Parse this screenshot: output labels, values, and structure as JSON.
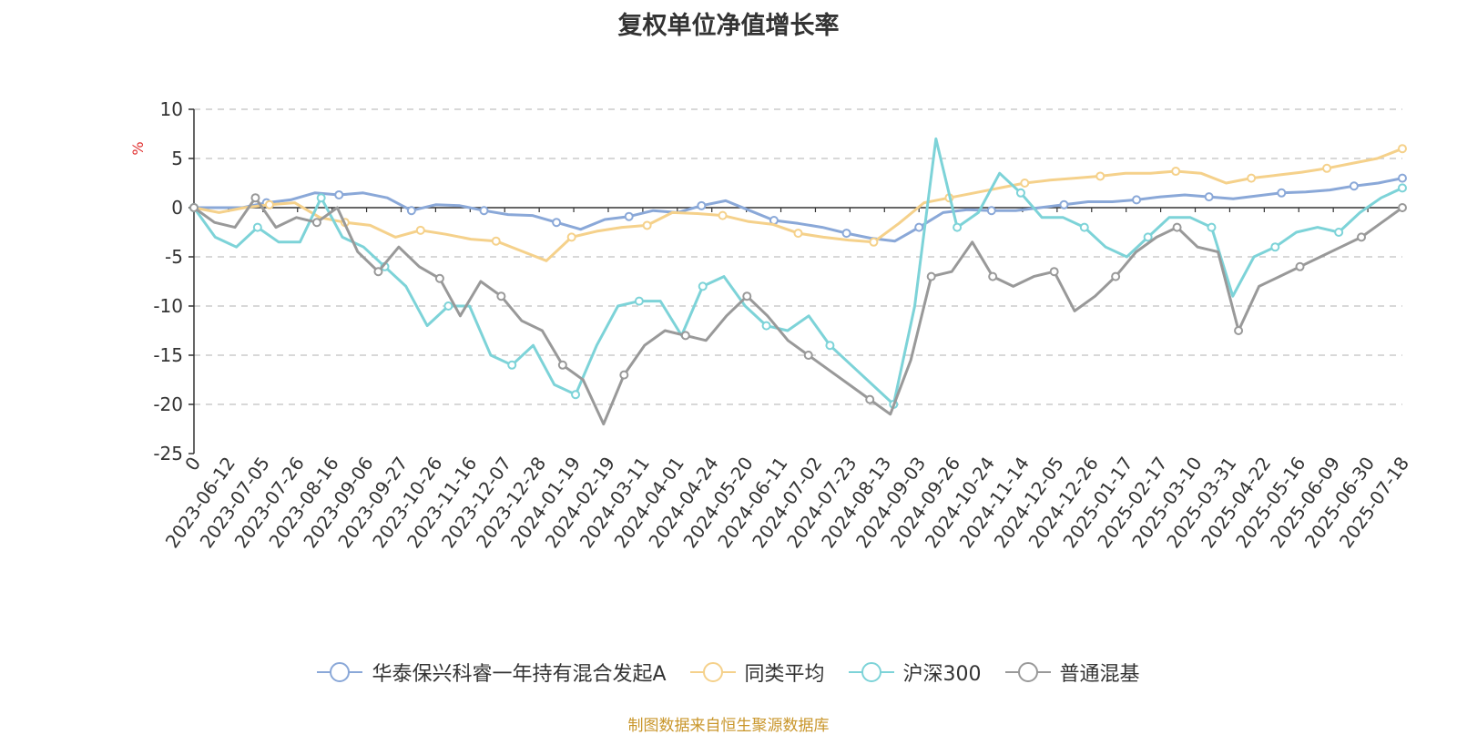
{
  "chart_data": {
    "type": "line",
    "title": "复权单位净值增长率",
    "ylabel": "%",
    "ylim": [
      -25,
      10
    ],
    "yticks": [
      10,
      5,
      0,
      -5,
      -10,
      -15,
      -20,
      -25
    ],
    "grid": true,
    "legend_position": "bottom",
    "x_tick_labels": [
      "0",
      "2023-06-12",
      "2023-07-05",
      "2023-07-26",
      "2023-08-16",
      "2023-09-06",
      "2023-09-27",
      "2023-10-26",
      "2023-11-16",
      "2023-12-07",
      "2023-12-28",
      "2024-01-19",
      "2024-02-19",
      "2024-03-11",
      "2024-04-01",
      "2024-04-24",
      "2024-05-20",
      "2024-06-11",
      "2024-07-02",
      "2024-07-23",
      "2024-08-13",
      "2024-09-03",
      "2024-09-26",
      "2024-10-24",
      "2024-11-14",
      "2024-12-05",
      "2024-12-26",
      "2025-01-17",
      "2025-02-17",
      "2025-03-10",
      "2025-03-31",
      "2025-04-22",
      "2025-05-16",
      "2025-06-09",
      "2025-06-30",
      "2025-07-18"
    ],
    "series": [
      {
        "name": "华泰保兴科睿一年持有混合发起A",
        "color": "#8aa8d8",
        "values": [
          0,
          0,
          0,
          0.5,
          0.8,
          1.5,
          1.3,
          1.5,
          1,
          -0.3,
          0.3,
          0.2,
          -0.3,
          -0.7,
          -0.8,
          -1.5,
          -2.2,
          -1.2,
          -0.9,
          -0.3,
          -0.5,
          0.2,
          0.7,
          -0.3,
          -1.3,
          -1.6,
          -2.0,
          -2.6,
          -3.1,
          -3.4,
          -2,
          -0.5,
          -0.2,
          -0.3,
          -0.3,
          0,
          0.3,
          0.6,
          0.6,
          0.8,
          1.1,
          1.3,
          1.1,
          0.9,
          1.2,
          1.5,
          1.6,
          1.8,
          2.2,
          2.5,
          3
        ]
      },
      {
        "name": "同类平均",
        "color": "#f5d18b",
        "values": [
          0,
          -0.5,
          0,
          0.3,
          0.5,
          -1,
          -1.5,
          -1.8,
          -3,
          -2.3,
          -2.7,
          -3.2,
          -3.4,
          -4.4,
          -5.4,
          -3,
          -2.4,
          -2,
          -1.8,
          -0.5,
          -0.6,
          -0.8,
          -1.4,
          -1.7,
          -2.6,
          -3.0,
          -3.3,
          -3.5,
          -1.6,
          0.5,
          1,
          1.5,
          2,
          2.5,
          2.8,
          3,
          3.2,
          3.5,
          3.5,
          3.7,
          3.5,
          2.5,
          3,
          3.3,
          3.6,
          4,
          4.5,
          5,
          6
        ]
      },
      {
        "name": "沪深300",
        "color": "#7dd3d8",
        "values": [
          0,
          -3,
          -4,
          -2,
          -3.5,
          -3.5,
          1,
          -3,
          -4,
          -6,
          -8,
          -12,
          -10,
          -10,
          -15,
          -16,
          -14,
          -18,
          -19,
          -14,
          -10,
          -9.5,
          -9.5,
          -13,
          -8,
          -7,
          -10,
          -12,
          -12.5,
          -11,
          -14,
          -16,
          -18,
          -20,
          -10,
          7,
          -2,
          -0.5,
          3.5,
          1.5,
          -1,
          -1,
          -2,
          -4,
          -5,
          -3,
          -1,
          -1,
          -2,
          -9,
          -5,
          -4,
          -2.5,
          -2,
          -2.5,
          -0.5,
          1,
          2
        ]
      },
      {
        "name": "普通混基",
        "color": "#999999",
        "values": [
          0,
          -1.5,
          -2,
          1,
          -2,
          -1,
          -1.5,
          0,
          -4.5,
          -6.5,
          -4,
          -6,
          -7.2,
          -11,
          -7.5,
          -9,
          -11.5,
          -12.5,
          -16,
          -17.5,
          -22,
          -17,
          -14,
          -12.5,
          -13,
          -13.5,
          -11,
          -9,
          -11,
          -13.5,
          -15,
          -16.5,
          -18,
          -19.5,
          -21,
          -15.5,
          -7,
          -6.5,
          -3.5,
          -7,
          -8,
          -7,
          -6.5,
          -10.5,
          -9,
          -7,
          -4.5,
          -3,
          -2,
          -4,
          -4.5,
          -12.5,
          -8,
          -7,
          -6,
          -5,
          -4,
          -3,
          -1.5,
          0
        ]
      }
    ]
  },
  "legend": [
    {
      "label": "华泰保兴科睿一年持有混合发起A",
      "color": "#8aa8d8"
    },
    {
      "label": "同类平均",
      "color": "#f5d18b"
    },
    {
      "label": "沪深300",
      "color": "#7dd3d8"
    },
    {
      "label": "普通混基",
      "color": "#999999"
    }
  ],
  "footer": "制图数据来自恒生聚源数据库"
}
